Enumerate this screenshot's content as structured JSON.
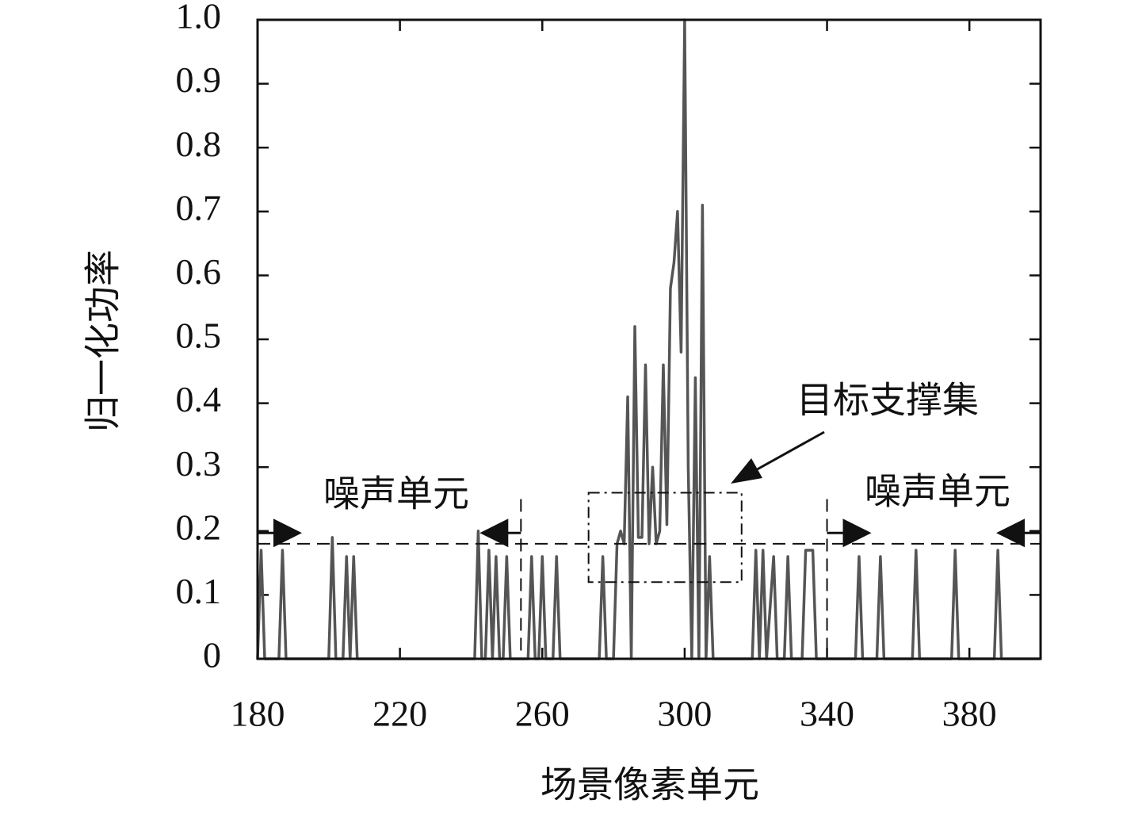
{
  "chart_data": {
    "type": "line",
    "xlabel": "场景像素单元",
    "ylabel": "归一化功率",
    "xlim": [
      180,
      400
    ],
    "ylim": [
      0,
      1
    ],
    "xticks": [
      180,
      220,
      260,
      300,
      340,
      380
    ],
    "yticks": [
      0,
      0.1,
      0.2,
      0.3,
      0.4,
      0.5,
      0.6,
      0.7,
      0.8,
      0.9,
      {
        "value": 1,
        "label": "1.0"
      }
    ],
    "color": "#555555",
    "x": [
      180,
      181,
      182,
      186,
      187,
      188,
      200,
      201,
      202,
      204,
      205,
      206,
      207,
      208,
      241,
      242,
      243,
      244,
      245,
      246,
      247,
      248,
      249,
      250,
      251,
      256,
      257,
      258,
      259,
      260,
      261,
      263,
      264,
      265,
      276,
      277,
      278,
      280,
      281,
      282,
      283,
      284,
      285,
      286,
      287,
      288,
      289,
      290,
      291,
      292,
      293,
      294,
      295,
      296,
      297,
      298,
      299,
      300,
      301,
      302,
      303,
      304,
      305,
      306,
      307,
      308,
      319,
      320,
      321,
      322,
      323,
      325,
      326,
      328,
      329,
      330,
      333,
      334,
      336,
      337,
      348,
      349,
      350,
      354,
      355,
      356,
      364,
      365,
      366,
      375,
      376,
      377,
      387,
      388,
      389,
      400
    ],
    "values": [
      0,
      0.17,
      0,
      0,
      0.17,
      0,
      0,
      0.19,
      0,
      0,
      0.16,
      0,
      0.16,
      0,
      0,
      0.2,
      0,
      0,
      0.17,
      0,
      0.16,
      0,
      0,
      0.16,
      0,
      0,
      0.16,
      0,
      0,
      0.16,
      0,
      0,
      0.16,
      0,
      0,
      0.16,
      0,
      0,
      0.18,
      0.2,
      0.18,
      0.41,
      0,
      0.52,
      0.19,
      0.19,
      0.46,
      0.18,
      0.3,
      0.18,
      0.2,
      0.46,
      0.21,
      0.58,
      0.62,
      0.7,
      0.48,
      1.0,
      0.3,
      0,
      0.44,
      0,
      0.71,
      0,
      0.16,
      0,
      0,
      0.17,
      0,
      0.17,
      0,
      0.16,
      0,
      0,
      0.16,
      0,
      0,
      0.17,
      0.17,
      0,
      0,
      0.16,
      0,
      0,
      0.16,
      0,
      0,
      0.17,
      0,
      0,
      0.17,
      0,
      0,
      0.17,
      0,
      0
    ],
    "threshold": 0.18,
    "boundaries": [
      254,
      340
    ],
    "support_box": {
      "xlim": [
        273,
        316
      ],
      "ylim": [
        0.12,
        0.26
      ]
    },
    "annotations": [
      {
        "text": "噪声单元"
      },
      {
        "text": "噪声单元"
      },
      {
        "text": "目标支撑集"
      }
    ]
  }
}
